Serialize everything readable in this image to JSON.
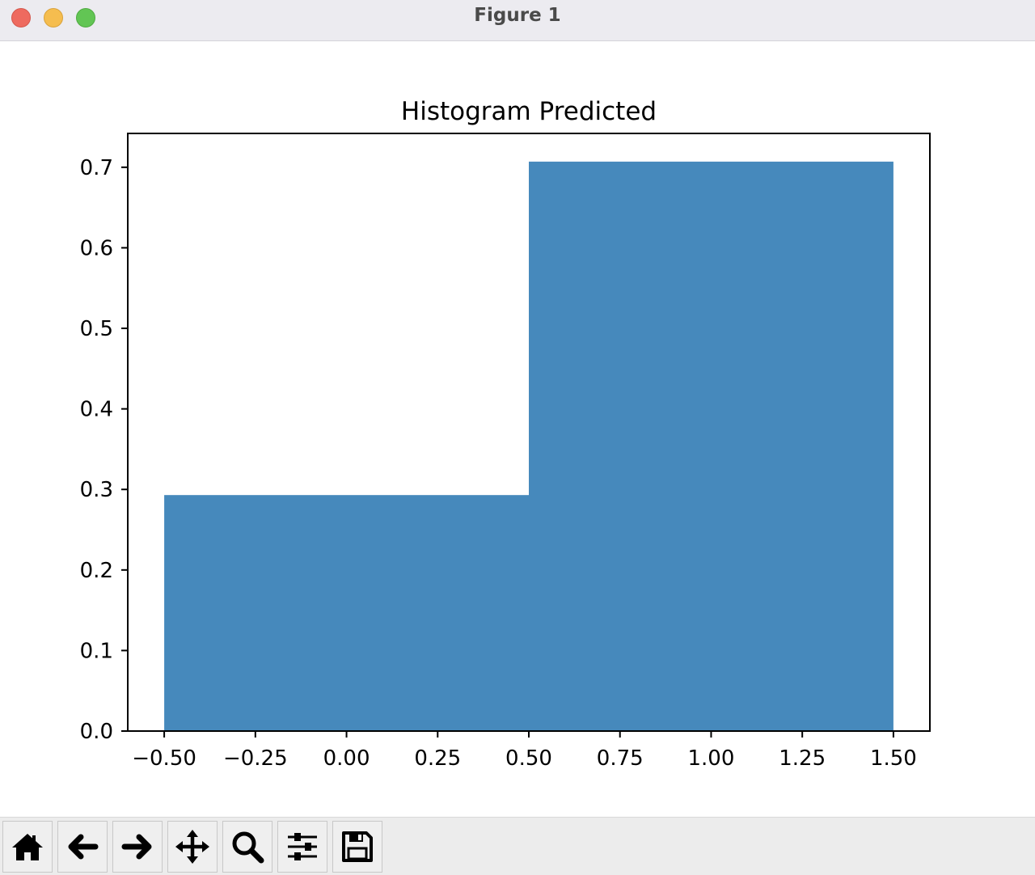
{
  "window": {
    "title": "Figure 1"
  },
  "toolbar": {
    "buttons": [
      {
        "name": "home-button",
        "icon": "home-icon"
      },
      {
        "name": "back-button",
        "icon": "arrow-left-icon"
      },
      {
        "name": "forward-button",
        "icon": "arrow-right-icon"
      },
      {
        "name": "pan-button",
        "icon": "move-icon"
      },
      {
        "name": "zoom-button",
        "icon": "magnifier-icon"
      },
      {
        "name": "configure-subplots-button",
        "icon": "sliders-icon"
      },
      {
        "name": "save-button",
        "icon": "floppy-disk-icon"
      }
    ]
  },
  "chart_data": {
    "type": "bar",
    "title": "Histogram Predicted",
    "xlabel": "",
    "ylabel": "",
    "bins": [
      {
        "x_start": -0.5,
        "x_end": 0.5,
        "value": 0.293
      },
      {
        "x_start": 0.5,
        "x_end": 1.5,
        "value": 0.707
      }
    ],
    "xlim": [
      -0.6,
      1.6
    ],
    "ylim": [
      0,
      0.742
    ],
    "xticks": [
      -0.5,
      -0.25,
      0.0,
      0.25,
      0.5,
      0.75,
      1.0,
      1.25,
      1.5
    ],
    "xtick_labels": [
      "−0.50",
      "−0.25",
      "0.00",
      "0.25",
      "0.50",
      "0.75",
      "1.00",
      "1.25",
      "1.50"
    ],
    "yticks": [
      0.0,
      0.1,
      0.2,
      0.3,
      0.4,
      0.5,
      0.6,
      0.7
    ],
    "ytick_labels": [
      "0.0",
      "0.1",
      "0.2",
      "0.3",
      "0.4",
      "0.5",
      "0.6",
      "0.7"
    ],
    "bar_color": "#4689bc",
    "grid": false
  }
}
